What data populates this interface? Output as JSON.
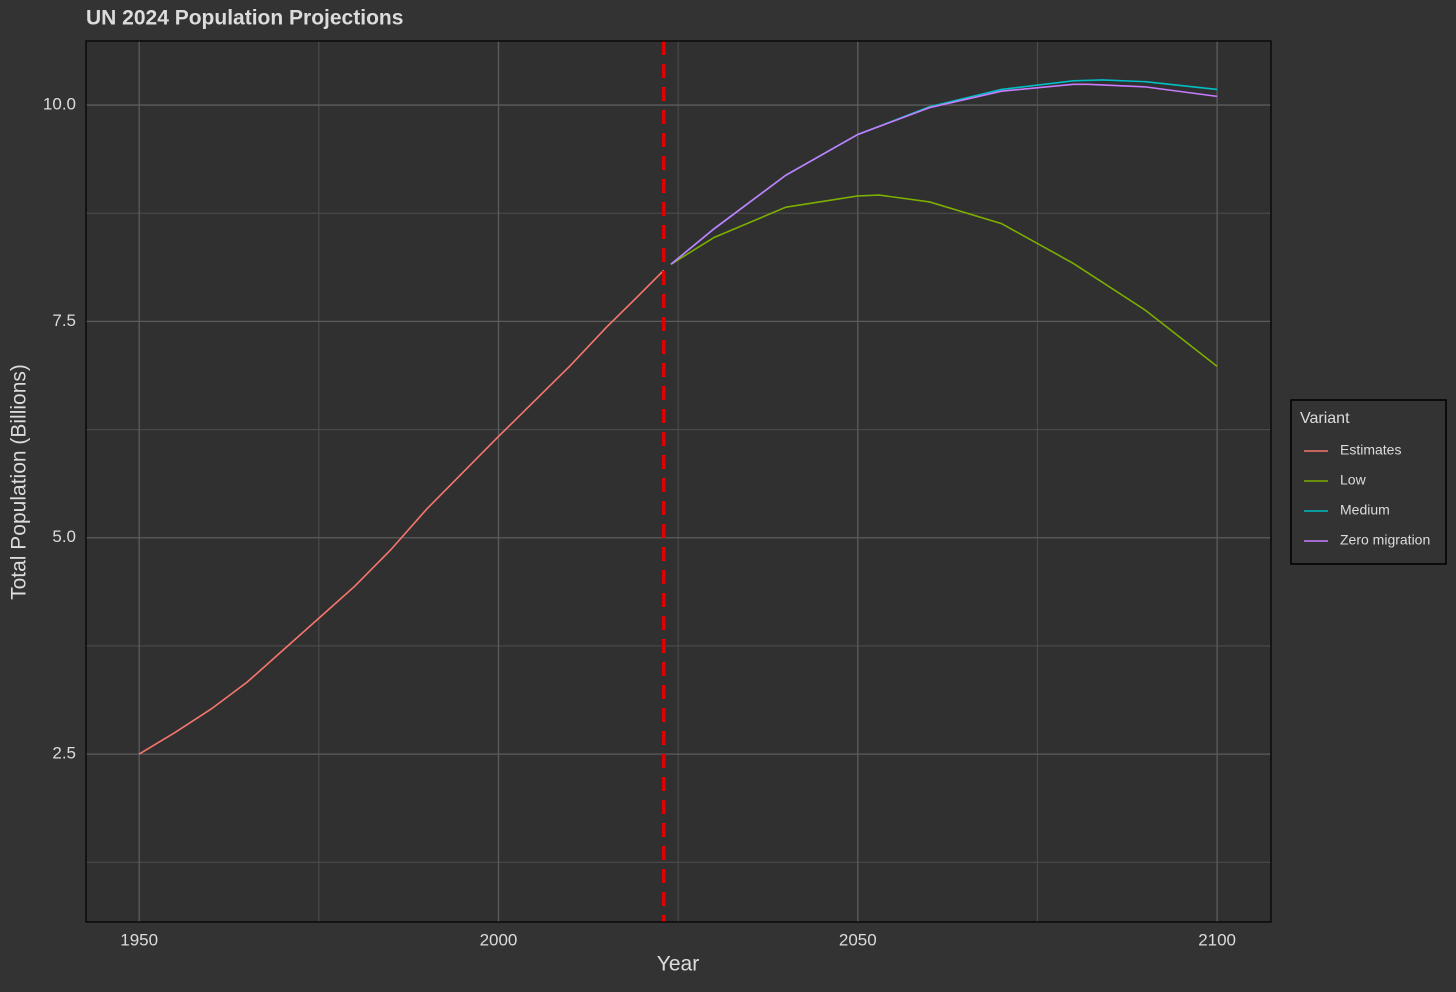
{
  "chart_data": {
    "type": "line",
    "title": "UN 2024 Population Projections",
    "x_label": "Year",
    "y_label": "Total Population (Billions)",
    "xlim": [
      1942.6,
      2107.5
    ],
    "ylim": [
      0.56,
      10.74
    ],
    "xticks": [
      1950,
      2000,
      2050,
      2100
    ],
    "yticks": [
      {
        "value": 2.5,
        "label": "2.5"
      },
      {
        "value": 5,
        "label": "5.0"
      },
      {
        "value": 7.5,
        "label": "7.5"
      },
      {
        "value": 10,
        "label": "10.0"
      }
    ],
    "xminor_ticks": [
      1975,
      2025,
      2075
    ],
    "yminor_ticks": [
      1.25,
      3.75,
      6.25,
      8.75
    ],
    "grid": true,
    "vline": {
      "x": 2023,
      "color": "#e00000"
    },
    "legend": {
      "title": "Variant",
      "position": "right"
    },
    "series": [
      {
        "name": "Estimates",
        "color": "#f8766d",
        "x": [
          1950,
          1955,
          1960,
          1965,
          1970,
          1975,
          1980,
          1985,
          1990,
          1995,
          2000,
          2005,
          2010,
          2015,
          2020,
          2023
        ],
        "values": [
          2.5,
          2.75,
          3.02,
          3.33,
          3.7,
          4.07,
          4.44,
          4.86,
          5.33,
          5.75,
          6.17,
          6.58,
          6.99,
          7.43,
          7.84,
          8.09
        ]
      },
      {
        "name": "Low",
        "color": "#7cae00",
        "x": [
          2024,
          2030,
          2040,
          2050,
          2053,
          2060,
          2070,
          2080,
          2090,
          2100
        ],
        "values": [
          8.16,
          8.47,
          8.82,
          8.95,
          8.96,
          8.88,
          8.63,
          8.17,
          7.63,
          6.98
        ]
      },
      {
        "name": "Medium",
        "color": "#00bfc4",
        "x": [
          2024,
          2030,
          2040,
          2050,
          2060,
          2070,
          2080,
          2084,
          2090,
          2100
        ],
        "values": [
          8.16,
          8.57,
          9.19,
          9.66,
          9.98,
          10.18,
          10.28,
          10.29,
          10.27,
          10.18
        ]
      },
      {
        "name": "Zero migration",
        "color": "#c77cff",
        "x": [
          2024,
          2030,
          2040,
          2050,
          2060,
          2070,
          2080,
          2082,
          2090,
          2100
        ],
        "values": [
          8.16,
          8.57,
          9.19,
          9.66,
          9.97,
          10.16,
          10.24,
          10.24,
          10.21,
          10.1
        ]
      }
    ]
  }
}
